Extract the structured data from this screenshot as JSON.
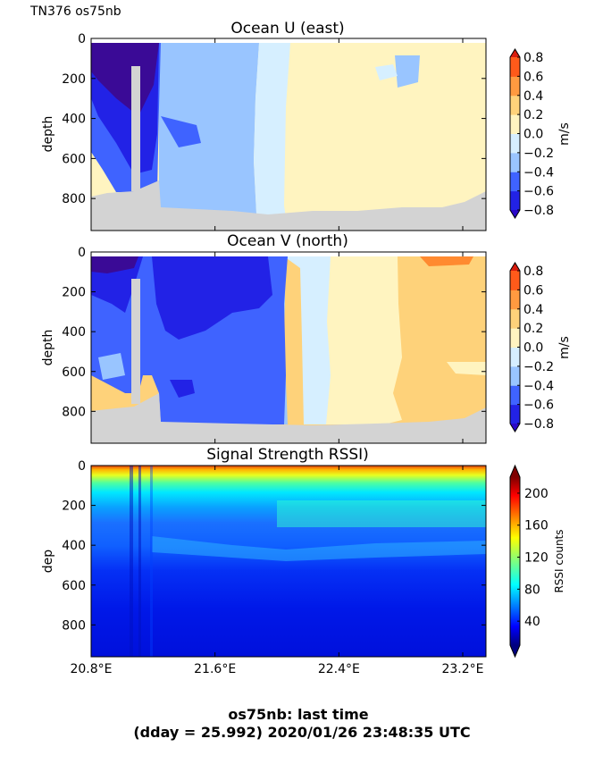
{
  "figure": {
    "label": "TN376 os75nb",
    "footer_line1": "os75nb: last time",
    "footer_line2": "(dday = 25.992) 2020/01/26 23:48:35 UTC"
  },
  "chart_data": [
    {
      "type": "heatmap",
      "title": "Ocean U (east)",
      "ylabel": "depth",
      "colorbar_label": "m/s",
      "xlim": [
        20.8,
        23.35
      ],
      "ylim": [
        960,
        0
      ],
      "yticks": [
        0,
        200,
        400,
        600,
        800
      ],
      "colorbar_ticks": [
        "0.8",
        "0.6",
        "0.4",
        "0.2",
        "0.0",
        "−0.2",
        "−0.4",
        "−0.6",
        "−0.8"
      ],
      "levels": [
        -0.8,
        -0.6,
        -0.4,
        -0.2,
        0.0,
        0.2,
        0.4,
        0.6,
        0.8
      ],
      "no_data_color": "#d3d3d3"
    },
    {
      "type": "heatmap",
      "title": "Ocean V (north)",
      "ylabel": "depth",
      "colorbar_label": "m/s",
      "xlim": [
        20.8,
        23.35
      ],
      "ylim": [
        960,
        0
      ],
      "yticks": [
        0,
        200,
        400,
        600,
        800
      ],
      "colorbar_ticks": [
        "0.8",
        "0.6",
        "0.4",
        "0.2",
        "0.0",
        "−0.2",
        "−0.4",
        "−0.6",
        "−0.8"
      ],
      "levels": [
        -0.8,
        -0.6,
        -0.4,
        -0.2,
        0.0,
        0.2,
        0.4,
        0.6,
        0.8
      ],
      "no_data_color": "#d3d3d3"
    },
    {
      "type": "heatmap",
      "title": "Signal Strength RSSI)",
      "ylabel": "dep",
      "colorbar_label": "RSSI counts",
      "xlim": [
        20.8,
        23.35
      ],
      "ylim": [
        960,
        0
      ],
      "yticks": [
        0,
        200,
        400,
        600,
        800
      ],
      "xtick_labels": [
        "20.8°E",
        "21.6°E",
        "22.4°E",
        "23.2°E"
      ],
      "colorbar_ticks": [
        "200",
        "160",
        "120",
        "80",
        "40"
      ],
      "colormap": "jet",
      "clim": [
        10,
        220
      ]
    }
  ]
}
